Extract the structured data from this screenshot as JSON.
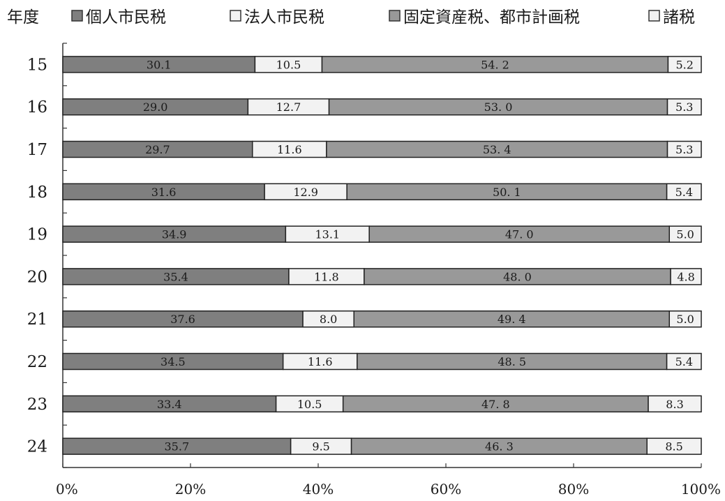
{
  "chart_data": {
    "type": "bar",
    "orientation": "horizontal",
    "stacked": "percent",
    "category_label": "年度",
    "categories": [
      "15",
      "16",
      "17",
      "18",
      "19",
      "20",
      "21",
      "22",
      "23",
      "24"
    ],
    "series": [
      {
        "name": "個人市民税",
        "color": "#7f7f7f",
        "values": [
          30.1,
          29.0,
          29.7,
          31.6,
          34.9,
          35.4,
          37.6,
          34.5,
          33.4,
          35.7
        ],
        "labels": [
          "30.1",
          "29.0",
          "29.7",
          "31.6",
          "34.9",
          "35.4",
          "37.6",
          "34.5",
          "33.4",
          "35.7"
        ]
      },
      {
        "name": "法人市民税",
        "color": "#f2f2f2",
        "values": [
          10.5,
          12.7,
          11.6,
          12.9,
          13.1,
          11.8,
          8.0,
          11.6,
          10.5,
          9.5
        ],
        "labels": [
          "10.5",
          "12.7",
          "11.6",
          "12.9",
          "13.1",
          "11.8",
          "8.0",
          "11.6",
          "10.5",
          "9.5"
        ]
      },
      {
        "name": "固定資産税、都市計画税",
        "color": "#999999",
        "values": [
          54.2,
          53.0,
          53.4,
          50.1,
          47.0,
          48.0,
          49.4,
          48.5,
          47.8,
          46.3
        ],
        "labels": [
          "54. 2",
          "53. 0",
          "53. 4",
          "50. 1",
          "47. 0",
          "48. 0",
          "49. 4",
          "48. 5",
          "47. 8",
          "46. 3"
        ]
      },
      {
        "name": "諸税",
        "color": "#f2f2f2",
        "values": [
          5.2,
          5.3,
          5.3,
          5.4,
          5.0,
          4.8,
          5.0,
          5.4,
          8.3,
          8.5
        ],
        "labels": [
          "5.2",
          "5.3",
          "5.3",
          "5.4",
          "5.0",
          "4.8",
          "5.0",
          "5.4",
          "8.3",
          "8.5"
        ]
      }
    ],
    "x_ticks": [
      "0%",
      "20%",
      "40%",
      "60%",
      "80%",
      "100%"
    ],
    "xlim": [
      0,
      100
    ],
    "legend_position": "top",
    "grid": false
  }
}
